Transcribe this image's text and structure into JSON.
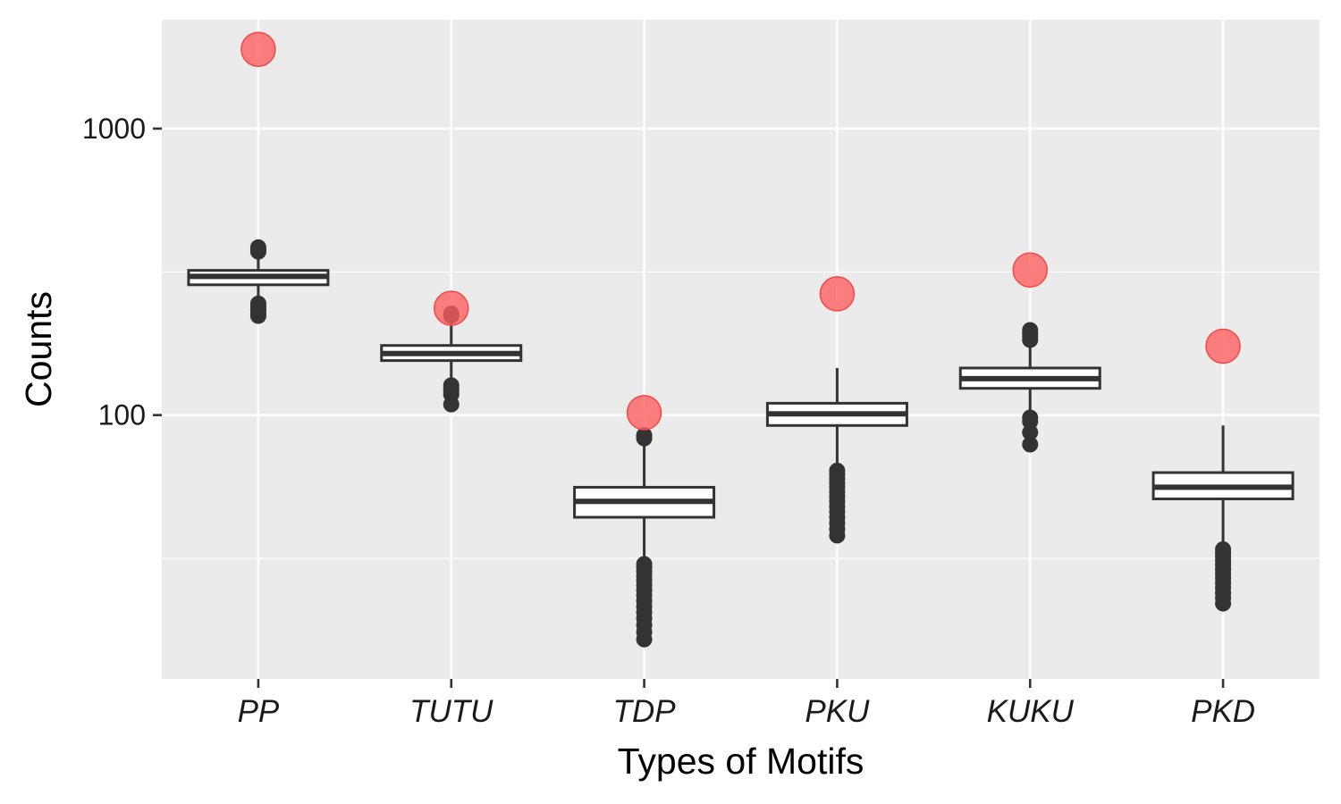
{
  "chart_data": {
    "type": "boxplot",
    "xlabel": "Types of Motifs",
    "ylabel": "Counts",
    "y_scale": "log10",
    "ylim": [
      12,
      2400
    ],
    "y_ticks": [
      {
        "value": 100,
        "label": "100"
      },
      {
        "value": 1000,
        "label": "1000"
      }
    ],
    "y_minor_gridlines": [
      31.6,
      316
    ],
    "grid": true,
    "categories": [
      "PP",
      "TUTU",
      "TDP",
      "PKU",
      "KUKU",
      "PKD"
    ],
    "boxes": [
      {
        "category": "PP",
        "whisker_low": 255,
        "q1": 285,
        "median": 305,
        "q3": 320,
        "whisker_high": 355,
        "outliers": [
          222,
          226,
          232,
          236,
          241,
          245,
          372,
          378,
          385
        ]
      },
      {
        "category": "TUTU",
        "whisker_low": 133,
        "q1": 155,
        "median": 164,
        "q3": 175,
        "whisker_high": 218,
        "outliers": [
          109,
          118,
          121,
          124,
          127,
          222,
          226
        ]
      },
      {
        "category": "TDP",
        "whisker_low": 31,
        "q1": 44,
        "median": 50,
        "q3": 56,
        "whisker_high": 80,
        "outliers": [
          16.5,
          17.5,
          18.5,
          19.5,
          20.5,
          21.5,
          22.5,
          23.5,
          24.5,
          25.5,
          26.5,
          27.5,
          28.5,
          29.5,
          30.2,
          83,
          85
        ]
      },
      {
        "category": "PKU",
        "whisker_low": 66,
        "q1": 92,
        "median": 101,
        "q3": 110,
        "whisker_high": 146,
        "outliers": [
          38,
          40,
          42,
          44,
          46,
          48,
          50,
          52,
          54,
          56,
          58,
          60,
          62,
          64
        ]
      },
      {
        "category": "KUKU",
        "whisker_low": 102,
        "q1": 124,
        "median": 134,
        "q3": 146,
        "whisker_high": 175,
        "outliers": [
          79,
          87,
          95,
          98,
          183,
          188,
          193,
          198
        ]
      },
      {
        "category": "PKD",
        "whisker_low": 36,
        "q1": 51,
        "median": 56,
        "q3": 63,
        "whisker_high": 92,
        "outliers": [
          22,
          23,
          24,
          25,
          26,
          27,
          28,
          29,
          30,
          31,
          32,
          33,
          34
        ]
      }
    ],
    "observed": [
      {
        "category": "PP",
        "value": 1890
      },
      {
        "category": "TUTU",
        "value": 236
      },
      {
        "category": "TDP",
        "value": 102
      },
      {
        "category": "PKU",
        "value": 265
      },
      {
        "category": "KUKU",
        "value": 321
      },
      {
        "category": "PKD",
        "value": 174
      }
    ],
    "colors": {
      "panel": "#EBEBEB",
      "grid": "#FFFFFF",
      "box": "#333333",
      "observed_point": "#FF5C5C"
    }
  }
}
